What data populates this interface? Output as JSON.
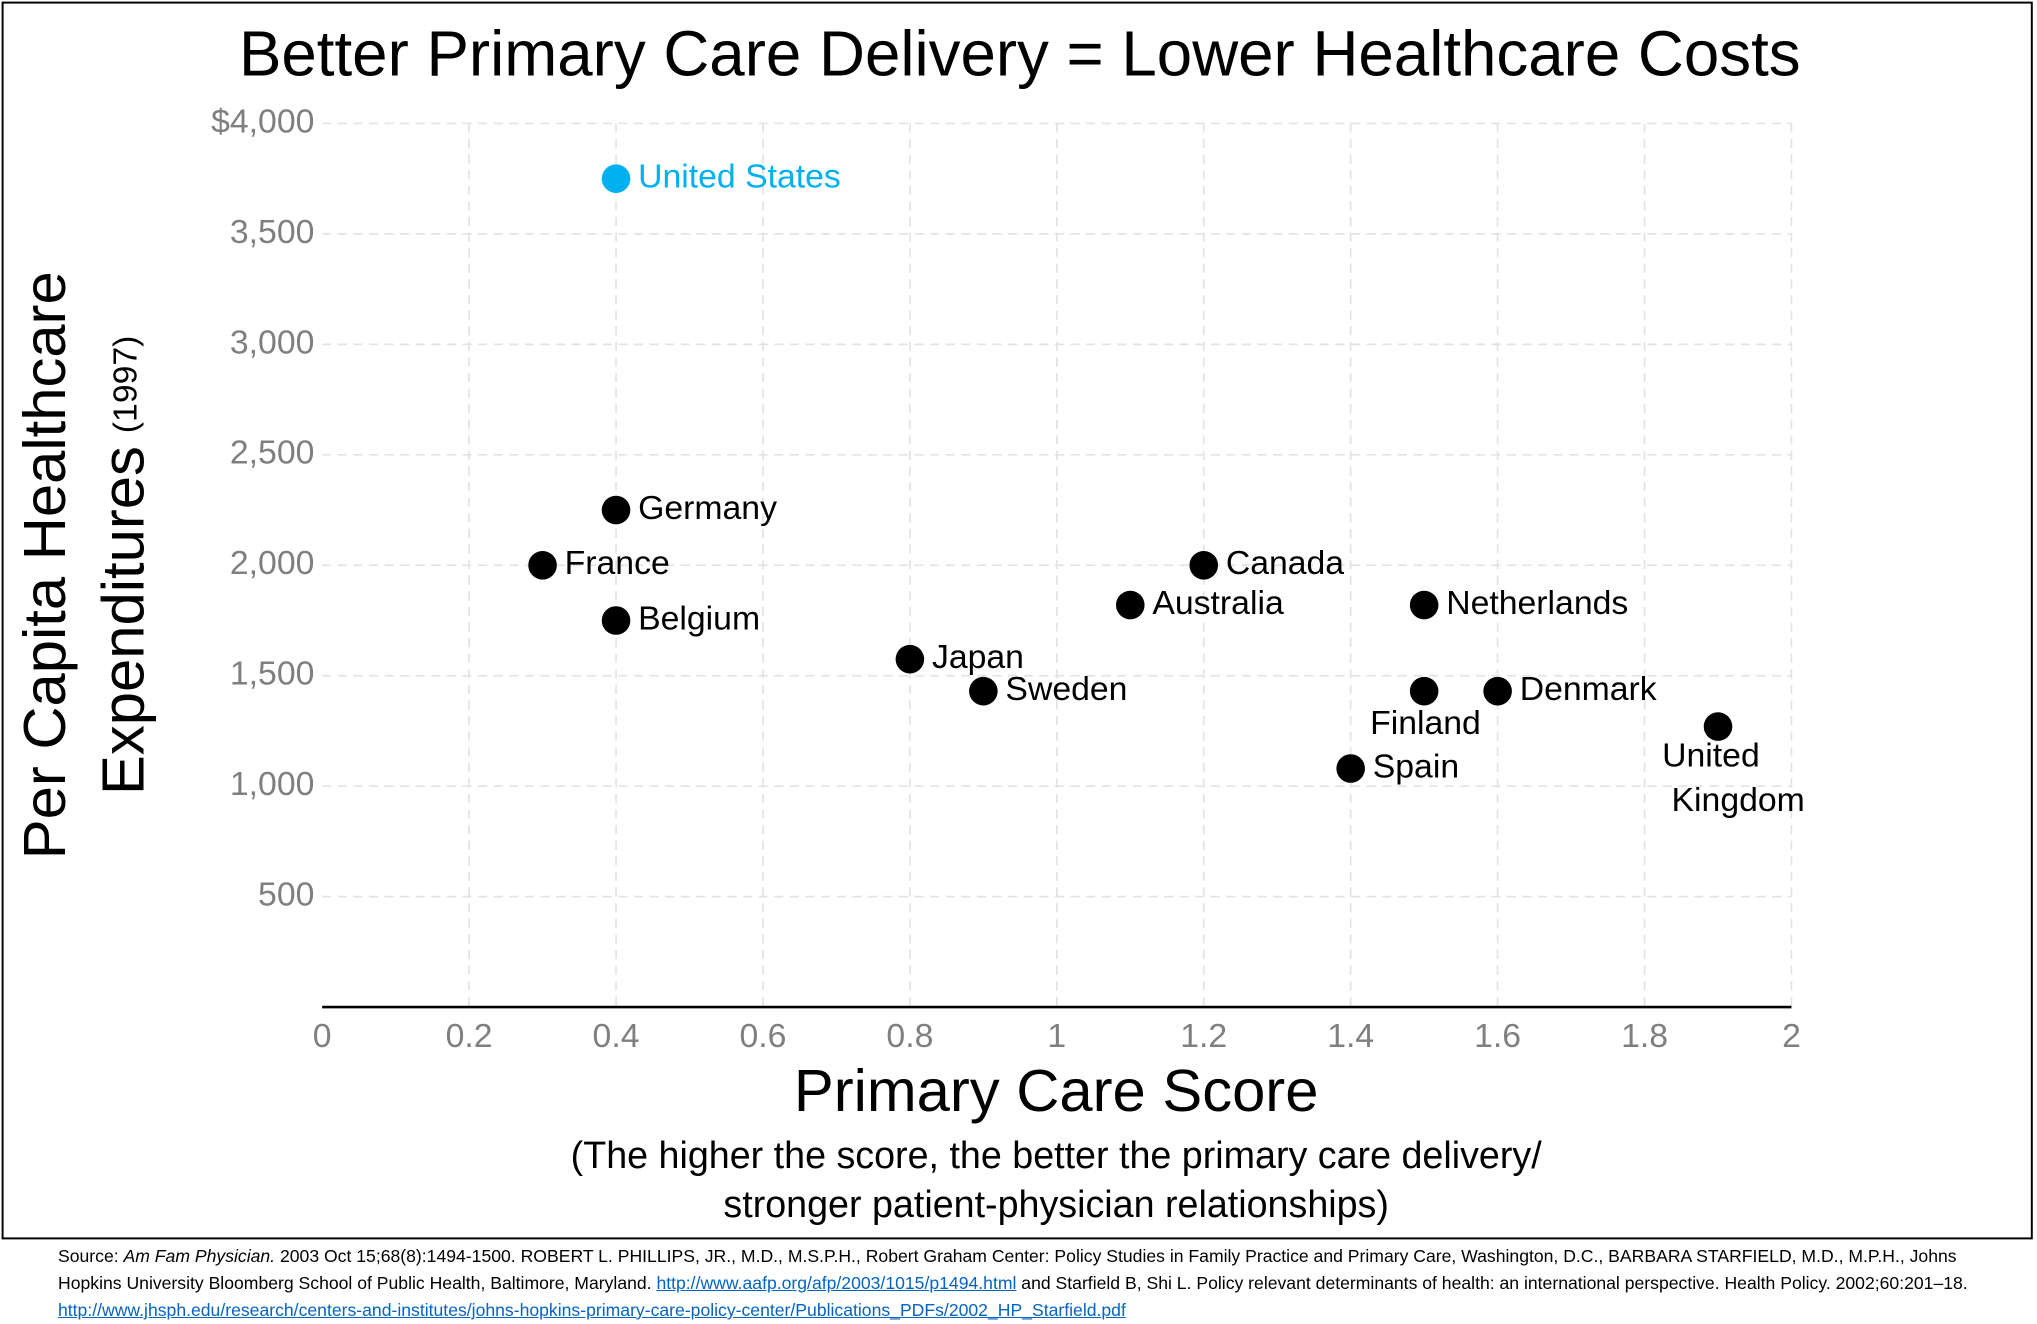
{
  "chart_data": {
    "type": "scatter",
    "title": "Better Primary Care Delivery = Lower Healthcare Costs",
    "y_label": [
      "Per Capita Healthcare",
      "Expenditures",
      "(1997)"
    ],
    "x_label": "Primary Care Score",
    "x_sublabel": [
      "(The higher the score, the better the primary care delivery/",
      "stronger patient-physician relationships)"
    ],
    "points": [
      "United States",
      "Germany",
      "France",
      "Belgium",
      "Japan",
      "Sweden",
      "Australia",
      "Canada",
      "Netherlands",
      "Finland",
      "Denmark",
      "Spain",
      "United Kingdom"
    ],
    "x": [
      0.4,
      0.4,
      0.3,
      0.4,
      0.8,
      0.9,
      1.1,
      1.2,
      1.5,
      1.5,
      1.6,
      1.4,
      1.9
    ],
    "values": [
      3750,
      2250,
      2000,
      1750,
      1575,
      1430,
      1820,
      2000,
      1820,
      1430,
      1430,
      1080,
      1270
    ],
    "colors": [
      "#00b0f0",
      "#000000",
      "#000000",
      "#000000",
      "#000000",
      "#000000",
      "#000000",
      "#000000",
      "#000000",
      "#000000",
      "#000000",
      "#000000",
      "#000000"
    ],
    "xlim": [
      0,
      2
    ],
    "ylim": [
      0,
      4000
    ],
    "xticks": [
      0,
      0.2,
      0.4,
      0.6,
      0.8,
      1,
      1.2,
      1.4,
      1.6,
      1.8,
      2
    ],
    "yticks": [
      500,
      {
        "value": 1000,
        "label": "1,000"
      },
      {
        "value": 1500,
        "label": "1,500"
      },
      {
        "value": 2000,
        "label": "2,000"
      },
      {
        "value": 2500,
        "label": "2,500"
      },
      {
        "value": 3000,
        "label": "3,000"
      },
      {
        "value": 3500,
        "label": "3,500"
      },
      {
        "value": 4000,
        "label": "$4,000"
      }
    ],
    "grid": true
  },
  "source": [
    "Source: ",
    "Am Fam Physician.",
    " 2003 Oct 15;68(8):1494-1500. ROBERT L. PHILLIPS, JR., M.D., M.S.P.H., Robert Graham Center: Policy Studies in Family Practice and Primary Care, Washington, D.C., BARBARA STARFIELD, M.D., M.P.H., Johns Hopkins University Bloomberg School of Public Health, Baltimore, Maryland. ",
    "http://www.aafp.org/afp/2003/1015/p1494.html",
    " and Starfield B, Shi L. Policy relevant determinants of health: an international perspective. Health Policy. 2002;60:201–18. ",
    "http://www.jhsph.edu/research/centers-and-institutes/johns-hopkins-primary-care-policy-center/Publications_PDFs/2002_HP_Starfield.pdf"
  ]
}
